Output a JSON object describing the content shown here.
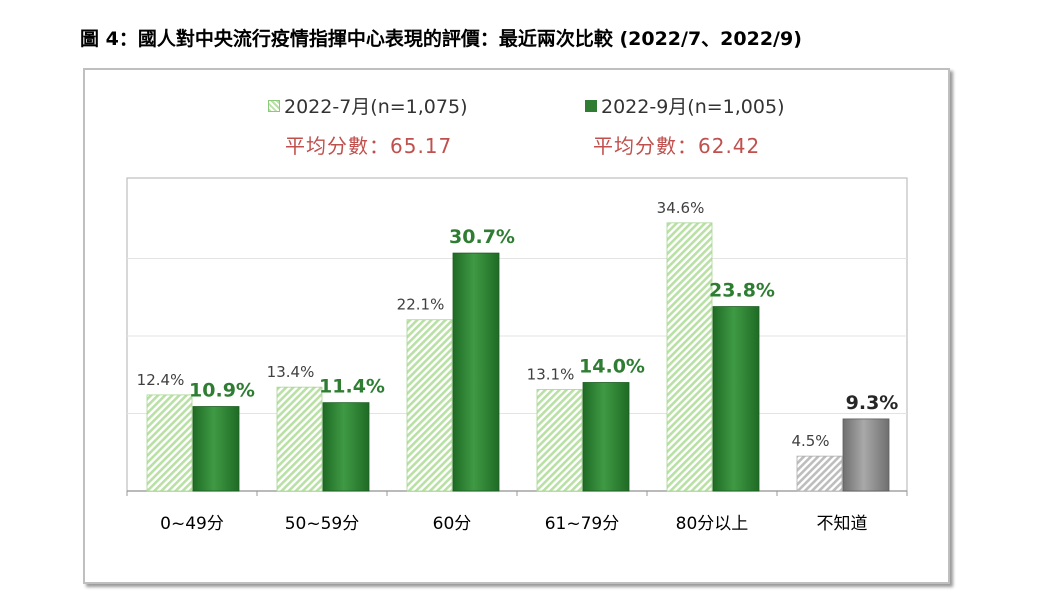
{
  "figure_title": "圖 4：國人對中央流行疫情指揮中心表現的評價：最近兩次比較 (2022/7、2022/9)",
  "legend": {
    "series1": "2022-7月(n=1,075)",
    "series2": "2022-9月(n=1,005)"
  },
  "averages": {
    "series1": "平均分數：65.17",
    "series2": "平均分數：62.42"
  },
  "colors": {
    "series1_fill": "#b9e0a5",
    "series2_fill": "#2e7d32",
    "unknown_fill": "#bdbdbd",
    "unknown_dark": "#7f7f7f",
    "average_text": "#c0504d"
  },
  "chart_data": {
    "type": "bar",
    "categories": [
      "0~49分",
      "50~59分",
      "60分",
      "61~79分",
      "80分以上",
      "不知道"
    ],
    "series": [
      {
        "name": "2022-7月(n=1,075)",
        "values": [
          12.4,
          13.4,
          22.1,
          13.1,
          34.6,
          4.5
        ],
        "labels": [
          "12.4%",
          "13.4%",
          "22.1%",
          "13.1%",
          "34.6%",
          "4.5%"
        ]
      },
      {
        "name": "2022-9月(n=1,005)",
        "values": [
          10.9,
          11.4,
          30.7,
          14.0,
          23.8,
          9.3
        ],
        "labels": [
          "10.9%",
          "11.4%",
          "30.7%",
          "14.0%",
          "23.8%",
          "9.3%"
        ]
      }
    ],
    "ylim": [
      0,
      40
    ],
    "grid": true,
    "legend_position": "top-center"
  }
}
